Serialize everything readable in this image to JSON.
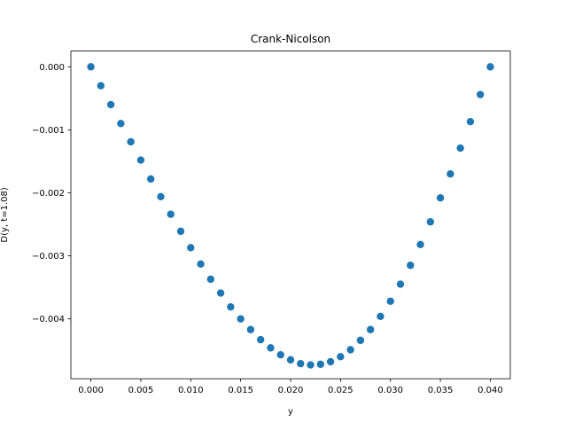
{
  "chart_data": {
    "type": "scatter",
    "title": "Crank-Nicolson",
    "xlabel": "y",
    "ylabel": "D(y, t=1.08)",
    "xlim": [
      -0.002,
      0.042
    ],
    "ylim": [
      -0.00495,
      0.00025
    ],
    "x_ticks": [
      0.0,
      0.005,
      0.01,
      0.015,
      0.02,
      0.025,
      0.03,
      0.035,
      0.04
    ],
    "x_tick_labels": [
      "0.000",
      "0.005",
      "0.010",
      "0.015",
      "0.020",
      "0.025",
      "0.030",
      "0.035",
      "0.040"
    ],
    "y_ticks": [
      0.0,
      -0.001,
      -0.002,
      -0.003,
      -0.004
    ],
    "y_tick_labels": [
      "0.000",
      "−0.001",
      "−0.002",
      "−0.003",
      "−0.004"
    ],
    "grid": false,
    "legend": false,
    "marker_color": "#1f77b4",
    "x": [
      0.0,
      0.001,
      0.002,
      0.003,
      0.004,
      0.005,
      0.006,
      0.007,
      0.008,
      0.009,
      0.01,
      0.011,
      0.012,
      0.013,
      0.014,
      0.015,
      0.016,
      0.017,
      0.018,
      0.019,
      0.02,
      0.021,
      0.022,
      0.023,
      0.024,
      0.025,
      0.026,
      0.027,
      0.028,
      0.029,
      0.03,
      0.031,
      0.032,
      0.033,
      0.034,
      0.035,
      0.036,
      0.037,
      0.038,
      0.039,
      0.04
    ],
    "values": [
      0.0,
      -0.0003,
      -0.0006,
      -0.0009,
      -0.00119,
      -0.00148,
      -0.00178,
      -0.00206,
      -0.00234,
      -0.00261,
      -0.00287,
      -0.00313,
      -0.00337,
      -0.00359,
      -0.00381,
      -0.004,
      -0.00417,
      -0.00433,
      -0.00446,
      -0.00457,
      -0.00465,
      -0.00471,
      -0.00473,
      -0.00472,
      -0.00468,
      -0.0046,
      -0.00449,
      -0.00434,
      -0.00417,
      -0.00396,
      -0.00372,
      -0.00345,
      -0.00315,
      -0.00282,
      -0.00246,
      -0.00208,
      -0.0017,
      -0.00129,
      -0.00087,
      -0.00044,
      0.0
    ]
  }
}
